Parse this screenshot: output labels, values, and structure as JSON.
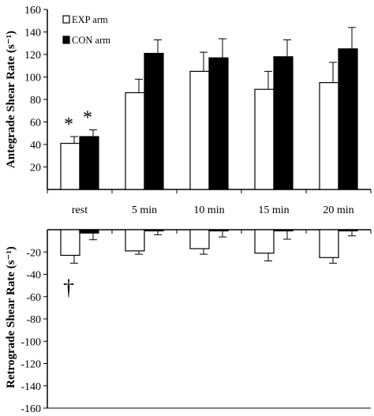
{
  "chart_data": [
    {
      "type": "bar",
      "ylabel": "Antegrade Shear Rate (s⁻¹)",
      "ylim": [
        0,
        160
      ],
      "yticks": [
        20,
        40,
        60,
        80,
        100,
        120,
        140,
        160
      ],
      "categories": [
        "rest",
        "5 min",
        "10 min",
        "15 min",
        "20 min"
      ],
      "series": [
        {
          "name": "EXP arm",
          "fill": "#ffffff",
          "values": [
            41,
            86,
            105,
            89,
            95
          ],
          "error": [
            6,
            12,
            17,
            16,
            18
          ]
        },
        {
          "name": "CON arm",
          "fill": "#000000",
          "values": [
            47,
            121,
            117,
            118,
            125
          ],
          "error": [
            6,
            12,
            17,
            15,
            19
          ]
        }
      ],
      "legend": "top-left",
      "annotations": [
        {
          "text": "*",
          "category": "rest",
          "series": "EXP arm"
        },
        {
          "text": "*",
          "category": "rest",
          "series": "CON arm"
        }
      ]
    },
    {
      "type": "bar",
      "ylabel": "Retrograde Shear Rate (s⁻¹)",
      "ylim": [
        -160,
        0
      ],
      "yticks": [
        -20,
        -40,
        -60,
        -80,
        -100,
        -120,
        -140,
        -160
      ],
      "categories": [
        "rest",
        "5 min",
        "10 min",
        "15 min",
        "20 min"
      ],
      "series": [
        {
          "name": "EXP arm",
          "fill": "#ffffff",
          "values": [
            -23,
            -19,
            -17,
            -21,
            -25
          ],
          "error": [
            7,
            3,
            5,
            7,
            5
          ]
        },
        {
          "name": "CON arm",
          "fill": "#000000",
          "values": [
            -3,
            -0.5,
            -0.5,
            -0.5,
            -0.5
          ],
          "error": [
            6,
            4,
            6,
            8,
            5
          ]
        }
      ],
      "annotations": [
        {
          "text": "†",
          "category": "rest",
          "series": "EXP arm"
        }
      ]
    }
  ]
}
